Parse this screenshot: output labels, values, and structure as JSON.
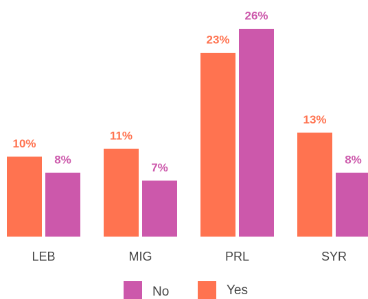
{
  "chart_data": {
    "type": "bar",
    "categories": [
      "LEB",
      "MIG",
      "PRL",
      "SYR"
    ],
    "series": [
      {
        "name": "Yes",
        "color": "#ff7350",
        "values": [
          10,
          11,
          23,
          13
        ],
        "value_labels": [
          "10%",
          "11%",
          "23%",
          "13%"
        ]
      },
      {
        "name": "No",
        "color": "#cc58ab",
        "values": [
          8,
          7,
          26,
          8
        ],
        "value_labels": [
          "8%",
          "7%",
          "26%",
          "8%"
        ]
      }
    ],
    "ylim": [
      0,
      26
    ]
  }
}
